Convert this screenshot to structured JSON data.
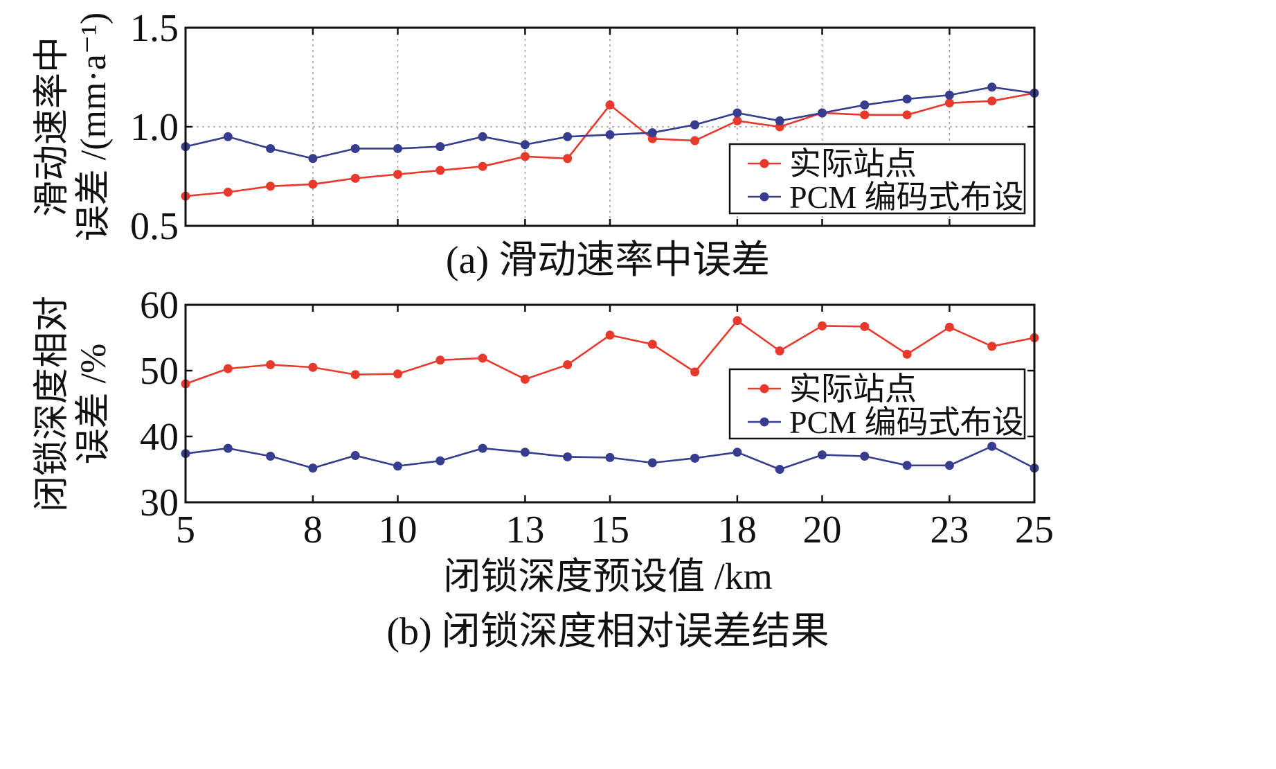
{
  "chart_data": [
    {
      "type": "line",
      "caption": "(a) 滑动速率中误差",
      "ylabel_lines": [
        "滑动速率中",
        "误差 /(mm·a⁻¹)"
      ],
      "xlabel": "",
      "xlim": [
        5,
        25
      ],
      "ylim": [
        0.5,
        1.5
      ],
      "yticks": [
        "0.5",
        "1.0",
        "1.5"
      ],
      "xtick_labels_shown": false,
      "grid": true,
      "legend_position": "right",
      "x": [
        5,
        6,
        7,
        8,
        9,
        10,
        11,
        12,
        13,
        14,
        15,
        16,
        17,
        18,
        19,
        20,
        21,
        22,
        23,
        24,
        25
      ],
      "series": [
        {
          "name": "实际站点",
          "color": "#e8392c",
          "values": [
            0.65,
            0.67,
            0.7,
            0.71,
            0.74,
            0.76,
            0.78,
            0.8,
            0.85,
            0.84,
            1.11,
            0.94,
            0.93,
            1.03,
            1.0,
            1.07,
            1.06,
            1.06,
            1.12,
            1.13,
            1.17
          ]
        },
        {
          "name": "PCM 编码式布设",
          "color": "#363d8e",
          "values": [
            0.9,
            0.95,
            0.89,
            0.84,
            0.89,
            0.89,
            0.9,
            0.95,
            0.91,
            0.95,
            0.96,
            0.97,
            1.01,
            1.07,
            1.03,
            1.07,
            1.11,
            1.14,
            1.16,
            1.2,
            1.17
          ]
        }
      ]
    },
    {
      "type": "line",
      "caption": "(b) 闭锁深度相对误差结果",
      "ylabel_lines": [
        "闭锁深度相对",
        "误差 /%"
      ],
      "xlabel": "闭锁深度预设值 /km",
      "xlim": [
        5,
        25
      ],
      "ylim": [
        30,
        60
      ],
      "yticks": [
        "30",
        "40",
        "50",
        "60"
      ],
      "xticks": [
        "5",
        "8",
        "10",
        "13",
        "15",
        "18",
        "20",
        "23",
        "25"
      ],
      "xtick_labels_shown": true,
      "grid": false,
      "legend_position": "right",
      "x": [
        5,
        6,
        7,
        8,
        9,
        10,
        11,
        12,
        13,
        14,
        15,
        16,
        17,
        18,
        19,
        20,
        21,
        22,
        23,
        24,
        25
      ],
      "series": [
        {
          "name": "实际站点",
          "color": "#e8392c",
          "values": [
            48.0,
            50.3,
            50.9,
            50.5,
            49.4,
            49.5,
            51.6,
            51.9,
            48.7,
            50.9,
            55.4,
            54.0,
            49.8,
            57.6,
            53.0,
            56.8,
            56.7,
            52.5,
            56.6,
            53.7,
            55.0
          ]
        },
        {
          "name": "PCM 编码式布设",
          "color": "#363d8e",
          "values": [
            37.4,
            38.2,
            37.0,
            35.2,
            37.1,
            35.5,
            36.3,
            38.2,
            37.6,
            36.9,
            36.8,
            36.0,
            36.7,
            37.6,
            35.0,
            37.2,
            37.0,
            35.6,
            35.6,
            38.5,
            35.2
          ]
        }
      ]
    }
  ]
}
